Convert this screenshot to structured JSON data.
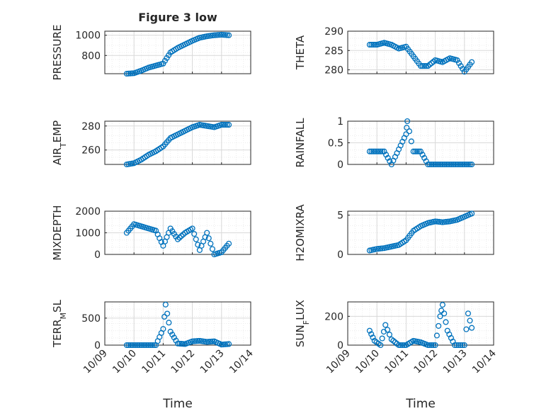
{
  "figure": {
    "title": "Figure 3 low",
    "x_label": "Time",
    "date_ticks": [
      "10/09",
      "10/10",
      "10/11",
      "10/12",
      "10/13",
      "10/14"
    ]
  },
  "colors": {
    "marker": "#0072BD",
    "axis": "#262626",
    "grid": "#d9d9d9",
    "minor_grid": "#ececec"
  },
  "chart_data": [
    {
      "id": "pressure",
      "type": "scatter",
      "ylabel": "PRESSURE",
      "xlim": [
        "10/09",
        "10/14"
      ],
      "ylim": [
        620,
        1040
      ],
      "yticks": [
        800,
        1000
      ],
      "grid": true,
      "x": [
        "10/09 18:00",
        "10/10 00:00",
        "10/10 06:00",
        "10/10 12:00",
        "10/10 18:00",
        "10/11 00:00",
        "10/11 06:00",
        "10/11 12:00",
        "10/11 18:00",
        "10/12 00:00",
        "10/12 06:00",
        "10/12 12:00",
        "10/12 18:00",
        "10/13 00:00",
        "10/13 06:00"
      ],
      "y": [
        620,
        625,
        650,
        680,
        700,
        720,
        830,
        875,
        910,
        945,
        975,
        990,
        1000,
        1005,
        1000
      ]
    },
    {
      "id": "theta",
      "type": "scatter",
      "ylabel": "THETA",
      "xlim": [
        "10/09",
        "10/14"
      ],
      "ylim": [
        279,
        290
      ],
      "yticks": [
        280,
        285,
        290
      ],
      "grid": true,
      "x": [
        "10/09 18:00",
        "10/10 00:00",
        "10/10 06:00",
        "10/10 12:00",
        "10/10 18:00",
        "10/11 00:00",
        "10/11 06:00",
        "10/11 12:00",
        "10/11 18:00",
        "10/12 00:00",
        "10/12 06:00",
        "10/12 12:00",
        "10/12 18:00",
        "10/13 00:00",
        "10/13 06:00"
      ],
      "y": [
        286.5,
        286.5,
        287,
        286.5,
        285.5,
        286,
        283.5,
        281,
        281,
        282.5,
        282,
        283,
        282.5,
        279.5,
        282
      ]
    },
    {
      "id": "air_temp",
      "type": "scatter",
      "ylabel": "AIR_TEMP",
      "xlim": [
        "10/09",
        "10/14"
      ],
      "ylim": [
        248,
        284
      ],
      "yticks": [
        260,
        280
      ],
      "grid": true,
      "x": [
        "10/09 18:00",
        "10/10 00:00",
        "10/10 06:00",
        "10/10 12:00",
        "10/10 18:00",
        "10/11 00:00",
        "10/11 06:00",
        "10/11 12:00",
        "10/11 18:00",
        "10/12 00:00",
        "10/12 06:00",
        "10/12 12:00",
        "10/12 18:00",
        "10/13 00:00",
        "10/13 06:00"
      ],
      "y": [
        248,
        249,
        252,
        256,
        259,
        263,
        270,
        273,
        276,
        279,
        281,
        280,
        279,
        281,
        281
      ]
    },
    {
      "id": "rainfall",
      "type": "scatter",
      "ylabel": "RAINFALL",
      "xlim": [
        "10/09",
        "10/14"
      ],
      "ylim": [
        0,
        1
      ],
      "yticks": [
        0,
        0.5,
        1
      ],
      "grid": true,
      "x": [
        "10/09 18:00",
        "10/10 00:00",
        "10/10 06:00",
        "10/10 12:00",
        "10/11 00:00",
        "10/11 01:00",
        "10/11 06:00",
        "10/11 12:00",
        "10/11 18:00",
        "10/12 06:00",
        "10/12 18:00",
        "10/13 06:00"
      ],
      "y": [
        0.3,
        0.3,
        0.3,
        0,
        0.7,
        1,
        0.3,
        0.3,
        0,
        0,
        0,
        0
      ]
    },
    {
      "id": "mixdepth",
      "type": "scatter",
      "ylabel": "MIXDEPTH",
      "xlim": [
        "10/09",
        "10/14"
      ],
      "ylim": [
        0,
        2000
      ],
      "yticks": [
        0,
        1000,
        2000
      ],
      "grid": true,
      "x": [
        "10/09 18:00",
        "10/10 00:00",
        "10/10 06:00",
        "10/10 12:00",
        "10/10 18:00",
        "10/11 00:00",
        "10/11 06:00",
        "10/11 12:00",
        "10/11 18:00",
        "10/12 00:00",
        "10/12 06:00",
        "10/12 12:00",
        "10/12 18:00",
        "10/13 00:00",
        "10/13 06:00"
      ],
      "y": [
        1000,
        1400,
        1300,
        1200,
        1100,
        400,
        1200,
        700,
        1000,
        1200,
        200,
        1000,
        0,
        100,
        500
      ]
    },
    {
      "id": "h2omixra",
      "type": "scatter",
      "ylabel": "H2OMIXRA",
      "xlim": [
        "10/09",
        "10/14"
      ],
      "ylim": [
        0,
        5.5
      ],
      "yticks": [
        0,
        5
      ],
      "grid": true,
      "x": [
        "10/09 18:00",
        "10/10 00:00",
        "10/10 06:00",
        "10/10 12:00",
        "10/10 18:00",
        "10/11 00:00",
        "10/11 06:00",
        "10/11 12:00",
        "10/11 18:00",
        "10/12 00:00",
        "10/12 06:00",
        "10/12 12:00",
        "10/12 18:00",
        "10/13 00:00",
        "10/13 06:00"
      ],
      "y": [
        0.5,
        0.7,
        0.8,
        1,
        1.2,
        1.8,
        3,
        3.6,
        4,
        4.2,
        4.1,
        4.2,
        4.4,
        4.8,
        5.2
      ]
    },
    {
      "id": "terr_msl",
      "type": "scatter",
      "ylabel": "TERR_MSL",
      "xlim": [
        "10/09",
        "10/14"
      ],
      "ylim": [
        0,
        800
      ],
      "yticks": [
        0,
        500
      ],
      "grid": true,
      "x": [
        "10/09 18:00",
        "10/10 00:00",
        "10/10 06:00",
        "10/10 12:00",
        "10/10 18:00",
        "10/11 00:00",
        "10/11 02:00",
        "10/11 06:00",
        "10/11 12:00",
        "10/11 18:00",
        "10/12 00:00",
        "10/12 06:00",
        "10/12 12:00",
        "10/12 18:00",
        "10/13 00:00",
        "10/13 06:00"
      ],
      "y": [
        0,
        0,
        0,
        0,
        0,
        300,
        750,
        250,
        30,
        20,
        70,
        80,
        60,
        70,
        10,
        20
      ]
    },
    {
      "id": "sun_flux",
      "type": "scatter",
      "ylabel": "SUN_FLUX",
      "xlim": [
        "10/09",
        "10/14"
      ],
      "ylim": [
        0,
        300
      ],
      "yticks": [
        0,
        200
      ],
      "grid": true,
      "x": [
        "10/09 18:00",
        "10/09 22:00",
        "10/10 03:00",
        "10/10 07:00",
        "10/10 12:00",
        "10/10 18:00",
        "10/11 00:00",
        "10/11 06:00",
        "10/11 12:00",
        "10/11 18:00",
        "10/12 00:00",
        "10/12 04:00",
        "10/12 06:00",
        "10/12 10:00",
        "10/12 16:00",
        "10/13 00:00",
        "10/13 03:00",
        "10/13 06:00"
      ],
      "y": [
        100,
        30,
        0,
        140,
        40,
        0,
        0,
        30,
        20,
        0,
        0,
        200,
        280,
        100,
        0,
        0,
        220,
        120
      ]
    }
  ]
}
